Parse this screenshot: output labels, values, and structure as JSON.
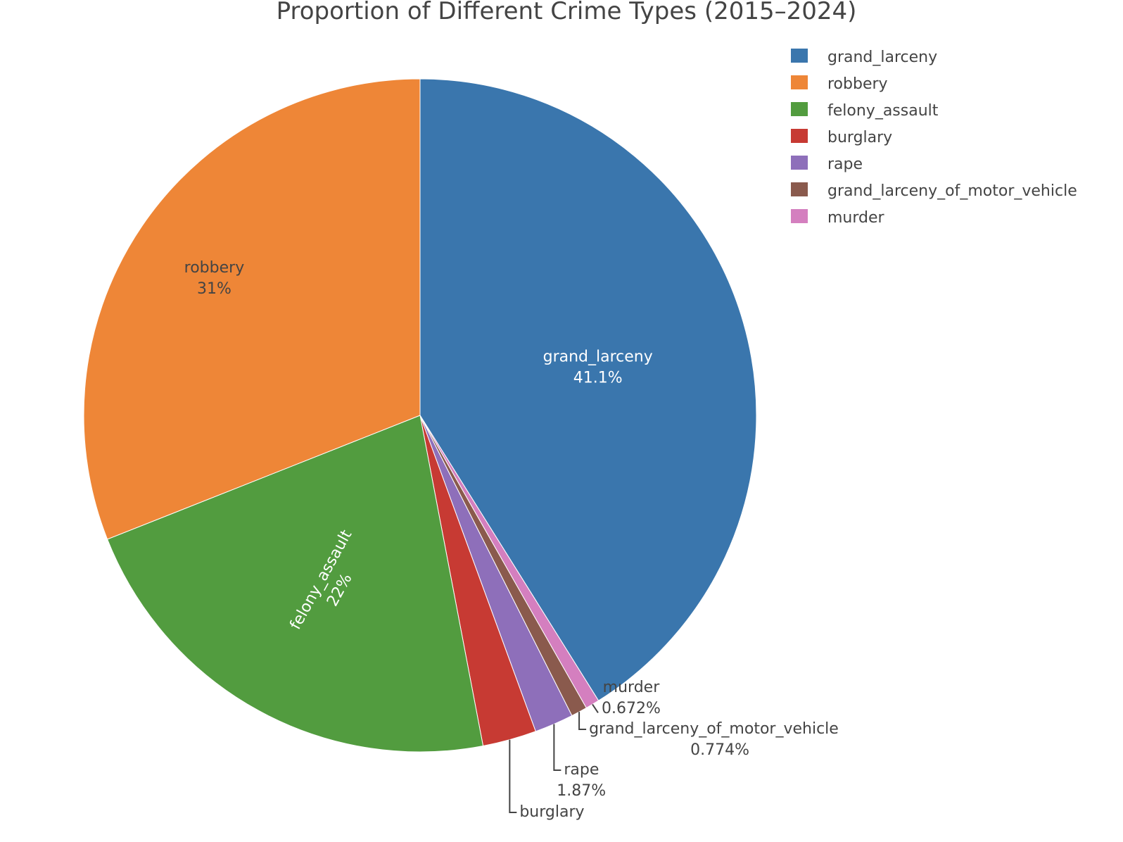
{
  "chart_data": {
    "type": "pie",
    "title": "Proportion of Different Crime Types (2015–2024)",
    "slices": [
      {
        "label": "grand_larceny",
        "percent_text": "41.1%",
        "value": 41.1,
        "color": "#3a76ad",
        "text_position": "inside"
      },
      {
        "label": "murder",
        "percent_text": "0.672%",
        "value": 0.672,
        "color": "#d47fbf",
        "text_position": "outside"
      },
      {
        "label": "grand_larceny_of_motor_vehicle",
        "percent_text": "0.774%",
        "value": 0.774,
        "color": "#8a5a4d",
        "text_position": "outside"
      },
      {
        "label": "rape",
        "percent_text": "1.87%",
        "value": 1.87,
        "color": "#8e6fba",
        "text_position": "outside"
      },
      {
        "label": "burglary",
        "percent_text": "2.58%",
        "value": 2.584,
        "color": "#c73a33",
        "text_position": "outside"
      },
      {
        "label": "felony_assault",
        "percent_text": "22%",
        "value": 22.0,
        "color": "#529c3f",
        "text_position": "inside-radial"
      },
      {
        "label": "robbery",
        "percent_text": "31%",
        "value": 31.0,
        "color": "#ee8637",
        "text_position": "inside"
      }
    ],
    "legend": {
      "placement": "top-right",
      "items": [
        "grand_larceny",
        "robbery",
        "felony_assault",
        "burglary",
        "rape",
        "grand_larceny_of_motor_vehicle",
        "murder"
      ]
    },
    "direction": "clockwise",
    "start_angle": "12 o'clock"
  }
}
